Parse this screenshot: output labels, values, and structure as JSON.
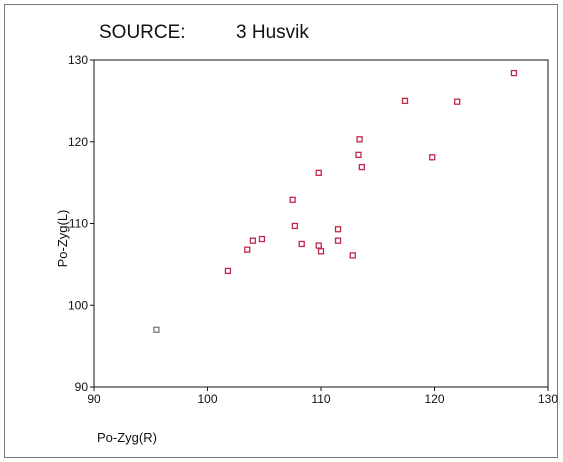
{
  "header": {
    "source_label": "SOURCE:",
    "source_value": "3  Husvik"
  },
  "chart_data": {
    "type": "scatter",
    "title": "SOURCE: 3 Husvik",
    "xlabel": "Po-Zyg(R)",
    "ylabel": "Po-Zyg(L)",
    "xlim": [
      90,
      130
    ],
    "ylim": [
      90,
      130
    ],
    "x_ticks": [
      "90",
      "100",
      "110",
      "120",
      "130"
    ],
    "y_ticks": [
      "90",
      "100",
      "110",
      "120",
      "130"
    ],
    "grid": false,
    "legend": "none",
    "marker_color": "#c0284a",
    "outlier_color": "#7a7a7a",
    "points": [
      {
        "x": 95.5,
        "y": 97.0
      },
      {
        "x": 101.8,
        "y": 104.2
      },
      {
        "x": 103.5,
        "y": 106.8
      },
      {
        "x": 104.0,
        "y": 107.9
      },
      {
        "x": 104.8,
        "y": 108.1
      },
      {
        "x": 107.5,
        "y": 112.9
      },
      {
        "x": 107.7,
        "y": 109.7
      },
      {
        "x": 108.3,
        "y": 107.5
      },
      {
        "x": 109.8,
        "y": 116.2
      },
      {
        "x": 109.8,
        "y": 107.3
      },
      {
        "x": 110.0,
        "y": 106.6
      },
      {
        "x": 111.5,
        "y": 109.3
      },
      {
        "x": 111.5,
        "y": 107.9
      },
      {
        "x": 112.8,
        "y": 106.1
      },
      {
        "x": 113.3,
        "y": 118.4
      },
      {
        "x": 113.4,
        "y": 120.3
      },
      {
        "x": 113.6,
        "y": 116.9
      },
      {
        "x": 117.4,
        "y": 125.0
      },
      {
        "x": 119.8,
        "y": 118.1
      },
      {
        "x": 122.0,
        "y": 124.9
      },
      {
        "x": 127.0,
        "y": 128.4
      }
    ]
  }
}
